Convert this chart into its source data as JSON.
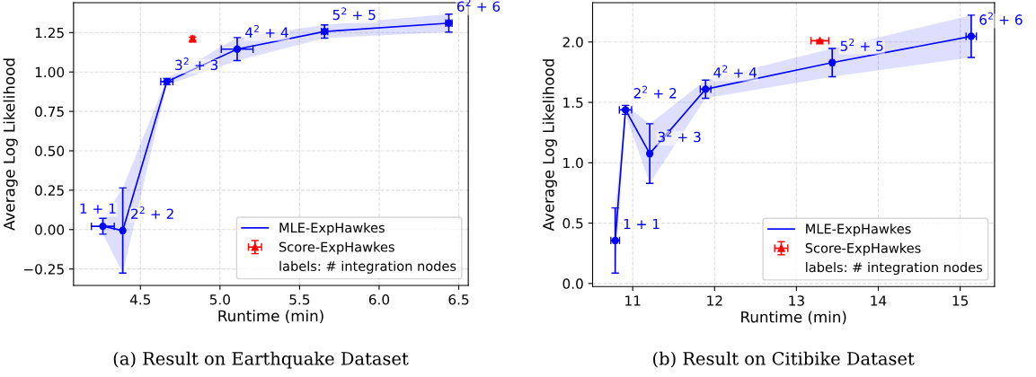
{
  "chart_data": [
    {
      "type": "line",
      "xlabel": "Runtime (min)",
      "ylabel": "Average Log Likelihood",
      "xlim": [
        4.08,
        6.56
      ],
      "ylim": [
        -0.354,
        1.44
      ],
      "xticks": [
        4.5,
        {
          "value": 5,
          "label": "5.0"
        },
        5.5,
        {
          "value": 6,
          "label": "6.0"
        },
        6.5
      ],
      "yticks": [
        {
          "value": -0.25,
          "label": "−0.25"
        },
        {
          "value": 0,
          "label": "0.00"
        },
        {
          "value": 0.25,
          "label": "0.25"
        },
        {
          "value": 0.5,
          "label": "0.50"
        },
        {
          "value": 0.75,
          "label": "0.75"
        },
        {
          "value": 1.0,
          "label": "1.00"
        },
        {
          "value": 1.25,
          "label": "1.25"
        }
      ],
      "grid": true,
      "legend": "bottom right",
      "legend_title": "labels: # integration nodes",
      "series": [
        {
          "name": "MLE-ExpHawkes",
          "color": "#0000ff",
          "marker": "circle",
          "x": [
            4.264,
            4.389,
            4.666,
            5.108,
            5.657,
            6.438
          ],
          "values": [
            0.021,
            -0.006,
            0.939,
            1.145,
            1.257,
            1.31
          ],
          "errors": [
            0.05,
            0.27,
            0.02,
            0.073,
            0.042,
            0.057
          ],
          "xerrors": [
            0.072,
            0.01,
            0.038,
            0.1,
            0.02,
            0.02
          ],
          "lower": [
            -0.029,
            -0.276,
            0.919,
            1.072,
            1.215,
            1.253
          ],
          "upper": [
            0.071,
            0.264,
            0.959,
            1.218,
            1.299,
            1.367
          ]
        },
        {
          "name": "Score-ExpHawkes",
          "type": "scatter",
          "color": "#ff0000",
          "marker": "triangle",
          "x": [
            4.828
          ],
          "values": [
            1.21
          ],
          "errors": [
            0.01
          ],
          "xerrors": [
            0.01
          ]
        }
      ],
      "annotations": [
        {
          "text": "1 + 1",
          "x": 4.264,
          "y": 0.021
        },
        {
          "text": "2$^{2}$ + 2",
          "x": 4.389,
          "y": -0.006
        },
        {
          "text": "3$^{2}$ + 3",
          "x": 4.666,
          "y": 0.939
        },
        {
          "text": "4$^{2}$ + 4",
          "x": 5.108,
          "y": 1.145
        },
        {
          "text": "5$^{2}$ + 5",
          "x": 5.657,
          "y": 1.257
        },
        {
          "text": "6$^{2}$ + 6",
          "x": 6.438,
          "y": 1.31
        },
        "(a) Result on Earthquake Dataset"
      ]
    },
    {
      "type": "line",
      "xlabel": "Runtime (min)",
      "ylabel": "Average Log Likelihood",
      "xlim": [
        10.51,
        15.42
      ],
      "ylim": [
        -0.025,
        2.326
      ],
      "xticks": [
        11,
        12,
        13,
        14,
        15
      ],
      "yticks": [
        {
          "value": 0,
          "label": "0.0"
        },
        0.5,
        {
          "value": 1,
          "label": "1.0"
        },
        1.5,
        {
          "value": 2,
          "label": "2.0"
        }
      ],
      "grid": true,
      "legend": "bottom right",
      "legend_title": "labels: # integration nodes",
      "series": [
        {
          "name": "MLE-ExpHawkes",
          "color": "#0000ff",
          "marker": "circle",
          "x": [
            10.786,
            10.912,
            11.208,
            11.89,
            13.437,
            15.135
          ],
          "values": [
            0.356,
            1.438,
            1.076,
            1.609,
            1.829,
            2.047
          ],
          "errors": [
            0.27,
            0.037,
            0.247,
            0.075,
            0.117,
            0.175
          ],
          "xerrors": [
            0.053,
            0.075,
            0.02,
            0.065,
            0.02,
            0.063
          ],
          "lower": [
            0.086,
            1.401,
            0.829,
            1.534,
            1.712,
            1.872
          ],
          "upper": [
            0.626,
            1.475,
            1.323,
            1.684,
            1.946,
            2.222
          ]
        },
        {
          "name": "Score-ExpHawkes",
          "type": "scatter",
          "color": "#ff0000",
          "marker": "triangle",
          "x": [
            13.286
          ],
          "values": [
            2.01
          ],
          "errors": [
            0.01
          ],
          "xerrors": [
            0.109
          ]
        }
      ],
      "annotations": [
        {
          "text": "1 + 1",
          "x": 10.786,
          "y": 0.356
        },
        {
          "text": "2$^{2}$ + 2",
          "x": 10.912,
          "y": 1.438
        },
        {
          "text": "3$^{2}$ + 3",
          "x": 11.208,
          "y": 1.076
        },
        {
          "text": "4$^{2}$ + 4",
          "x": 11.89,
          "y": 1.609
        },
        {
          "text": "5$^{2}$ + 5",
          "x": 13.437,
          "y": 1.829
        },
        {
          "text": "6$^{2}$ + 6",
          "x": 15.135,
          "y": 2.047
        },
        "(b) Result on Citibike Dataset"
      ]
    }
  ]
}
